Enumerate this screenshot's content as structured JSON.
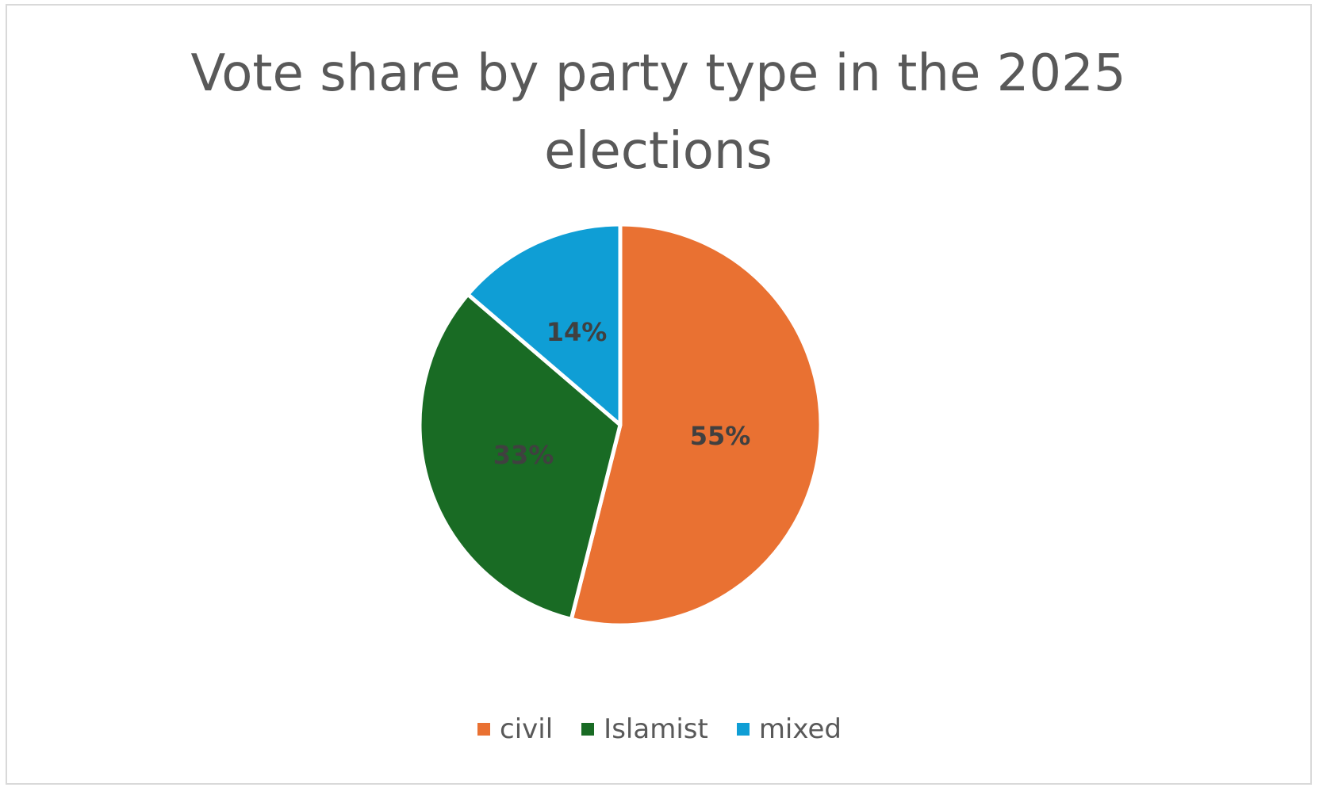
{
  "chart_data": {
    "type": "pie",
    "title": "Vote share by party type in the 2025 elections",
    "categories": [
      "civil",
      "Islamist",
      "mixed"
    ],
    "values": [
      55,
      33,
      14
    ],
    "data_labels": [
      "55%",
      "33%",
      "14%"
    ],
    "colors": [
      "#E97132",
      "#196B24",
      "#0F9ED5"
    ],
    "legend_position": "bottom",
    "start_angle_deg": 0,
    "direction": "clockwise"
  }
}
